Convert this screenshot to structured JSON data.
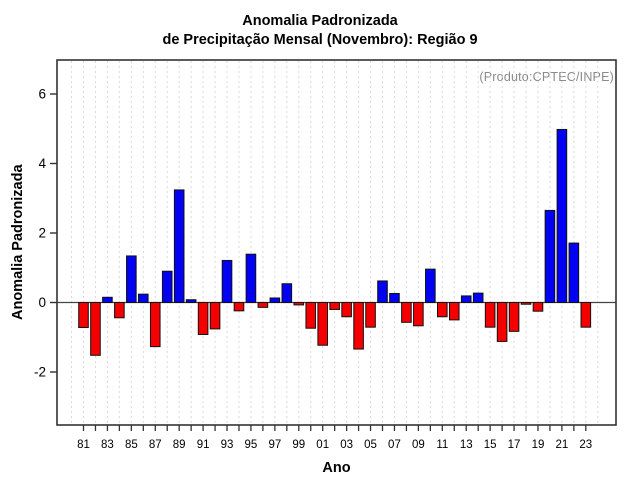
{
  "chart_data": {
    "type": "bar",
    "title_line1": "Anomalia Padronizada",
    "title_line2": "de Precipitação Mensal (Novembro): Região 9",
    "annotation": "(Produto:CPTEC/INPE)",
    "xlabel": "Ano",
    "ylabel": "Anomalia Padronizada",
    "x": [
      "81",
      "82",
      "83",
      "84",
      "85",
      "86",
      "87",
      "88",
      "89",
      "90",
      "91",
      "92",
      "93",
      "94",
      "95",
      "96",
      "97",
      "98",
      "99",
      "00",
      "01",
      "02",
      "03",
      "04",
      "05",
      "06",
      "07",
      "08",
      "09",
      "10",
      "11",
      "12",
      "13",
      "14",
      "15",
      "16",
      "17",
      "18",
      "19",
      "20",
      "21",
      "22",
      "23"
    ],
    "x_tick_labels_shown": [
      "81",
      "83",
      "85",
      "87",
      "89",
      "91",
      "93",
      "95",
      "97",
      "99",
      "01",
      "03",
      "05",
      "07",
      "09",
      "11",
      "13",
      "15",
      "17",
      "19",
      "21",
      "23"
    ],
    "values": [
      -0.72,
      -1.52,
      0.15,
      -0.44,
      1.34,
      0.24,
      -1.27,
      0.9,
      3.24,
      0.08,
      -0.92,
      -0.76,
      1.21,
      -0.24,
      1.39,
      -0.14,
      0.13,
      0.54,
      -0.07,
      -0.74,
      -1.23,
      -0.2,
      -0.41,
      -1.34,
      -0.71,
      0.62,
      0.26,
      -0.57,
      -0.67,
      0.96,
      -0.41,
      -0.5,
      0.19,
      0.27,
      -0.71,
      -1.12,
      -0.83,
      -0.05,
      -0.25,
      2.65,
      4.98,
      1.71,
      -0.71
    ],
    "yticks": [
      -2,
      0,
      2,
      4,
      6
    ],
    "ylim": [
      -3.5,
      7.0
    ],
    "positive_color": "#0202f2",
    "negative_color": "#f40000",
    "bar_outline_color": "#111111",
    "gridlines": "vertical-dashed-every-year",
    "legend": "none"
  }
}
